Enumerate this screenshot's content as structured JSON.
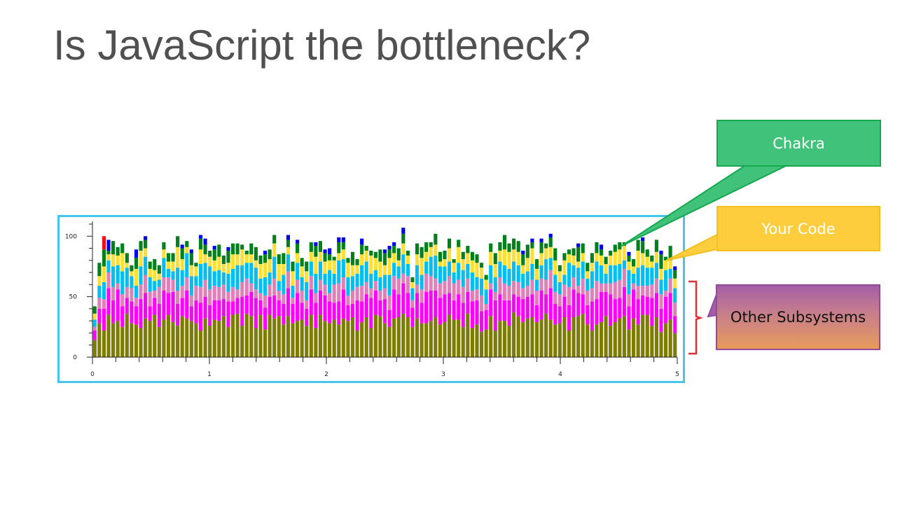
{
  "title": "Is JavaScript the bottleneck?",
  "callouts": {
    "chakra": "Chakra",
    "your_code": "Your Code",
    "other": "Other Subsystems"
  },
  "colors": {
    "frame": "#45c4ec",
    "chakra": "#41c27a",
    "your_code": "#fdcd3e",
    "other_top": "#a55ea6",
    "other_bottom": "#e89a5c",
    "bracket": "#e03030"
  },
  "chart_data": {
    "type": "bar",
    "stacked": true,
    "xlim": [
      0,
      5
    ],
    "ylim": [
      0,
      110
    ],
    "x_ticks": [
      "0",
      "1",
      "2",
      "3",
      "4",
      "5"
    ],
    "y_ticks": [
      "0",
      "50",
      "100"
    ],
    "series_colors": [
      "#7c7c00",
      "#ff00ff",
      "#e07fb8",
      "#00bff0",
      "#ffe032",
      "#00801a",
      "#0000ee",
      "#ee1111"
    ],
    "bars": [
      [
        14,
        8,
        3,
        6,
        5,
        6
      ],
      [
        28,
        12,
        9,
        10,
        8,
        11,
        0,
        0
      ],
      [
        22,
        18,
        8,
        14,
        13,
        14,
        0,
        11
      ],
      [
        35,
        22,
        13,
        10,
        5,
        3,
        9,
        0
      ],
      [
        28,
        19,
        11,
        17,
        10,
        11
      ],
      [
        30,
        26,
        5,
        15,
        8,
        7
      ],
      [
        25,
        17,
        10,
        19,
        15,
        8
      ],
      [
        36,
        13,
        9,
        16,
        4,
        8
      ],
      [
        28,
        18,
        11,
        10,
        4,
        5
      ],
      [
        27,
        15,
        7,
        10,
        14,
        9,
        7
      ],
      [
        24,
        24,
        12,
        15,
        13,
        8
      ],
      [
        32,
        21,
        15,
        15,
        7,
        7,
        3
      ],
      [
        30,
        12,
        12,
        12,
        7,
        6
      ],
      [
        35,
        14,
        6,
        8,
        9,
        9
      ],
      [
        25,
        19,
        14,
        6,
        5,
        7
      ],
      [
        31,
        24,
        11,
        16,
        7,
        6
      ],
      [
        35,
        18,
        13,
        7,
        6,
        7
      ],
      [
        29,
        25,
        10,
        7,
        8,
        7
      ],
      [
        26,
        18,
        11,
        19,
        17,
        9
      ],
      [
        34,
        15,
        10,
        13,
        9,
        9,
        3
      ],
      [
        32,
        23,
        11,
        20,
        5,
        5
      ],
      [
        30,
        12,
        9,
        16,
        9,
        10,
        3
      ],
      [
        28,
        19,
        12,
        8,
        8,
        3
      ],
      [
        22,
        23,
        13,
        19,
        12,
        9,
        3
      ],
      [
        32,
        18,
        14,
        14,
        7,
        8,
        5
      ],
      [
        26,
        17,
        13,
        19,
        8,
        5
      ],
      [
        31,
        16,
        12,
        12,
        9,
        9,
        3
      ],
      [
        30,
        17,
        11,
        14,
        11,
        10
      ],
      [
        34,
        14,
        12,
        10,
        7,
        7
      ],
      [
        25,
        21,
        8,
        15,
        9,
        10,
        3
      ],
      [
        35,
        11,
        12,
        15,
        12,
        9
      ],
      [
        36,
        13,
        7,
        20,
        9,
        9
      ],
      [
        26,
        24,
        12,
        14,
        13,
        4
      ],
      [
        36,
        15,
        14,
        13,
        7,
        3
      ],
      [
        34,
        20,
        7,
        17,
        7,
        9
      ],
      [
        24,
        25,
        7,
        18,
        6,
        11
      ],
      [
        35,
        12,
        6,
        12,
        12,
        7
      ],
      [
        23,
        18,
        10,
        15,
        12,
        7,
        3
      ],
      [
        35,
        15,
        10,
        10,
        11,
        8
      ],
      [
        32,
        19,
        14,
        18,
        11,
        7
      ],
      [
        34,
        13,
        8,
        8,
        14,
        8
      ],
      [
        27,
        17,
        8,
        16,
        9,
        9
      ],
      [
        34,
        23,
        14,
        14,
        6,
        6,
        4
      ],
      [
        28,
        16,
        5,
        10,
        12,
        8
      ],
      [
        30,
        23,
        11,
        14,
        8,
        8,
        3
      ],
      [
        31,
        14,
        10,
        11,
        9,
        7
      ],
      [
        26,
        14,
        7,
        15,
        9,
        8
      ],
      [
        35,
        21,
        11,
        12,
        8,
        8
      ],
      [
        24,
        21,
        8,
        16,
        14,
        9,
        3
      ],
      [
        35,
        20,
        9,
        15,
        8,
        9
      ],
      [
        30,
        21,
        9,
        9,
        10,
        7,
        3
      ],
      [
        28,
        18,
        7,
        19,
        8,
        5,
        5
      ],
      [
        31,
        14,
        15,
        9,
        11,
        3
      ],
      [
        27,
        19,
        15,
        19,
        6,
        9,
        4
      ],
      [
        32,
        24,
        10,
        15,
        8,
        6,
        4
      ],
      [
        30,
        13,
        8,
        15,
        12,
        4
      ],
      [
        33,
        11,
        11,
        12,
        9,
        11
      ],
      [
        22,
        25,
        11,
        11,
        7,
        5
      ],
      [
        29,
        17,
        13,
        17,
        9,
        8,
        5
      ],
      [
        33,
        19,
        10,
        17,
        9,
        4
      ],
      [
        24,
        25,
        8,
        12,
        15,
        4
      ],
      [
        35,
        20,
        8,
        9,
        10,
        5
      ],
      [
        34,
        13,
        8,
        11,
        13,
        10
      ],
      [
        28,
        20,
        9,
        11,
        8,
        10,
        3
      ],
      [
        25,
        14,
        12,
        17,
        14,
        7,
        3
      ],
      [
        32,
        24,
        11,
        11,
        8,
        6,
        3
      ],
      [
        33,
        19,
        13,
        10,
        5,
        10
      ],
      [
        36,
        25,
        8,
        16,
        9,
        8,
        5
      ],
      [
        33,
        20,
        14,
        10,
        7,
        4
      ],
      [
        25,
        16,
        6,
        10,
        5,
        4
      ],
      [
        32,
        21,
        7,
        16,
        9,
        9
      ],
      [
        28,
        17,
        11,
        12,
        14,
        9
      ],
      [
        28,
        26,
        15,
        10,
        8,
        8
      ],
      [
        30,
        25,
        12,
        16,
        8,
        4
      ],
      [
        33,
        22,
        10,
        19,
        9,
        9
      ],
      [
        27,
        22,
        12,
        14,
        4,
        8
      ],
      [
        29,
        23,
        11,
        12,
        6,
        7
      ],
      [
        35,
        18,
        14,
        12,
        11,
        8
      ],
      [
        31,
        16,
        14,
        9,
        8,
        3
      ],
      [
        31,
        21,
        12,
        14,
        13,
        6
      ],
      [
        25,
        20,
        13,
        14,
        9,
        6
      ],
      [
        36,
        18,
        11,
        12,
        9,
        6
      ],
      [
        24,
        22,
        9,
        15,
        10,
        7
      ],
      [
        27,
        20,
        9,
        10,
        12,
        7
      ],
      [
        21,
        17,
        13,
        14,
        9,
        4
      ],
      [
        23,
        16,
        5,
        12,
        8,
        4
      ],
      [
        34,
        22,
        5,
        15,
        11,
        7
      ],
      [
        22,
        25,
        7,
        12,
        11,
        9
      ],
      [
        30,
        22,
        14,
        13,
        9,
        7
      ],
      [
        30,
        17,
        14,
        15,
        13,
        12
      ],
      [
        26,
        21,
        12,
        14,
        14,
        7
      ],
      [
        37,
        15,
        11,
        16,
        10,
        9
      ],
      [
        34,
        16,
        12,
        14,
        11,
        9
      ],
      [
        29,
        19,
        9,
        12,
        7,
        9,
        3
      ],
      [
        32,
        18,
        9,
        12,
        11,
        11
      ],
      [
        33,
        19,
        12,
        13,
        13,
        5,
        3
      ],
      [
        29,
        14,
        12,
        9,
        9,
        8
      ],
      [
        31,
        24,
        10,
        11,
        10,
        9,
        3
      ],
      [
        36,
        16,
        12,
        17,
        9,
        4
      ],
      [
        31,
        26,
        15,
        10,
        9,
        8,
        3
      ],
      [
        27,
        17,
        10,
        14,
        12,
        10
      ],
      [
        28,
        14,
        10,
        10,
        9,
        5
      ],
      [
        33,
        17,
        10,
        8,
        12,
        6
      ],
      [
        22,
        21,
        15,
        20,
        7,
        4
      ],
      [
        33,
        23,
        10,
        10,
        8,
        6
      ],
      [
        34,
        19,
        6,
        15,
        5,
        12,
        3
      ],
      [
        36,
        16,
        13,
        14,
        7,
        8
      ],
      [
        27,
        16,
        12,
        10,
        6,
        7
      ],
      [
        22,
        24,
        11,
        14,
        7,
        8
      ],
      [
        27,
        21,
        15,
        16,
        7,
        9
      ],
      [
        29,
        25,
        7,
        15,
        8,
        5,
        4
      ],
      [
        34,
        20,
        7,
        8,
        8,
        6
      ],
      [
        26,
        26,
        9,
        15,
        8,
        4
      ],
      [
        29,
        19,
        14,
        14,
        11,
        6
      ],
      [
        32,
        17,
        15,
        13,
        12,
        6
      ],
      [
        34,
        24,
        15,
        7,
        12,
        3
      ],
      [
        23,
        19,
        10,
        20,
        7,
        5,
        3
      ],
      [
        32,
        24,
        5,
        8,
        6,
        6
      ],
      [
        27,
        21,
        11,
        15,
        14,
        9
      ],
      [
        35,
        16,
        8,
        17,
        10,
        10,
        3
      ],
      [
        35,
        15,
        9,
        15,
        9,
        6
      ],
      [
        26,
        23,
        11,
        14,
        5,
        5
      ],
      [
        33,
        20,
        12,
        13,
        9,
        10
      ],
      [
        21,
        19,
        12,
        12,
        9,
        12,
        3
      ],
      [
        28,
        22,
        5,
        17,
        8,
        3
      ],
      [
        31,
        22,
        12,
        8,
        7,
        12
      ],
      [
        20,
        14,
        11,
        12,
        8,
        7,
        3
      ]
    ]
  }
}
